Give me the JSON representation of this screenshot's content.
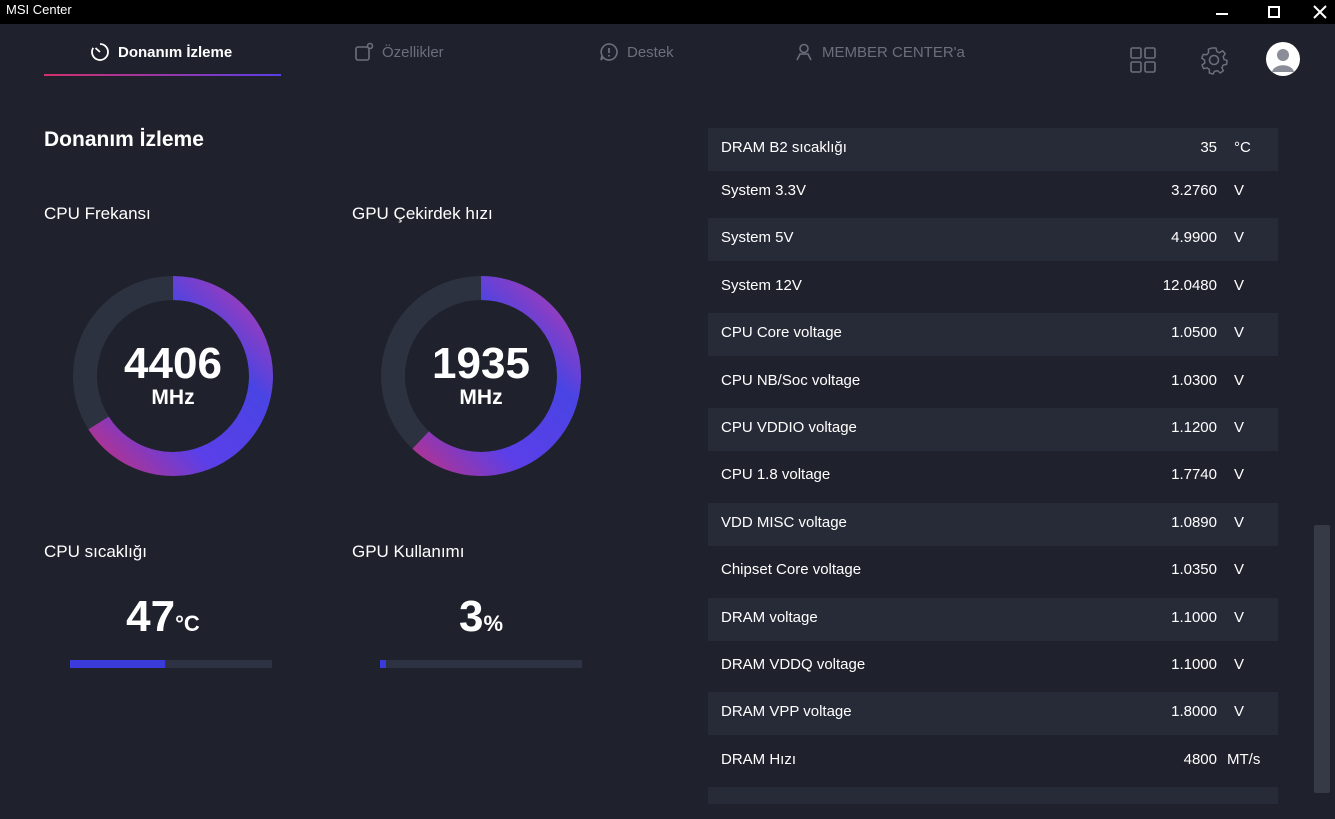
{
  "app": {
    "title": "MSI Center"
  },
  "nav": {
    "tabs": [
      {
        "label": "Donanım İzleme",
        "icon": "gauge-icon"
      },
      {
        "label": "Özellikler",
        "icon": "features-icon"
      },
      {
        "label": "Destek",
        "icon": "support-icon"
      },
      {
        "label": "MEMBER CENTER'a",
        "icon": "member-icon"
      }
    ]
  },
  "main": {
    "title": "Donanım İzleme",
    "cpu_freq": {
      "label": "CPU Frekansı",
      "value": "4406",
      "unit": "MHz",
      "fill": 0.66
    },
    "gpu_core": {
      "label": "GPU Çekirdek hızı",
      "value": "1935",
      "unit": "MHz",
      "fill": 0.62
    },
    "cpu_temp": {
      "label": "CPU sıcaklığı",
      "value": "47",
      "unit": "°C",
      "fill": 0.47
    },
    "gpu_usage": {
      "label": "GPU Kullanımı",
      "value": "3",
      "unit": "%",
      "fill": 0.03
    }
  },
  "sensors": [
    {
      "name": "DRAM B2 sıcaklığı",
      "value": "35",
      "unit": "°C"
    },
    {
      "name": "System 3.3V",
      "value": "3.2760",
      "unit": "V"
    },
    {
      "name": "System 5V",
      "value": "4.9900",
      "unit": "V"
    },
    {
      "name": "System 12V",
      "value": "12.0480",
      "unit": "V"
    },
    {
      "name": "CPU Core voltage",
      "value": "1.0500",
      "unit": "V"
    },
    {
      "name": "CPU NB/Soc voltage",
      "value": "1.0300",
      "unit": "V"
    },
    {
      "name": "CPU VDDIO voltage",
      "value": "1.1200",
      "unit": "V"
    },
    {
      "name": "CPU 1.8 voltage",
      "value": "1.7740",
      "unit": "V"
    },
    {
      "name": "VDD MISC voltage",
      "value": "1.0890",
      "unit": "V"
    },
    {
      "name": "Chipset Core voltage",
      "value": "1.0350",
      "unit": "V"
    },
    {
      "name": "DRAM voltage",
      "value": "1.1000",
      "unit": "V"
    },
    {
      "name": "DRAM VDDQ voltage",
      "value": "1.1000",
      "unit": "V"
    },
    {
      "name": "DRAM VPP voltage",
      "value": "1.8000",
      "unit": "V"
    },
    {
      "name": "DRAM Hızı",
      "value": "4800",
      "unit": "MT/s"
    }
  ],
  "colors": {
    "accent_pink": "#d2306a",
    "accent_blue": "#4a3fe6",
    "bar_fill": "#3b3bdc"
  }
}
